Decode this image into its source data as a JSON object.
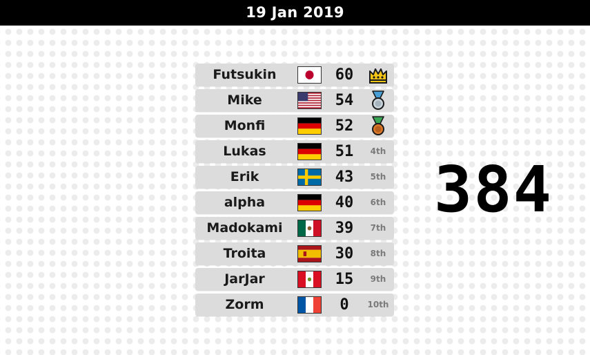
{
  "header": {
    "date": "19 Jan 2019"
  },
  "total_score": "384",
  "colors": {
    "header_bg": "#000000",
    "row_bg": "#dcdcdc",
    "gold": "#f5c518",
    "silver": "#c9d3da",
    "bronze": "#d9772b"
  },
  "leaderboard": [
    {
      "name": "Futsukin",
      "flag": "japan-flag-icon",
      "score": "60",
      "rank": "",
      "medal": "crown-icon"
    },
    {
      "name": "Mike",
      "flag": "usa-flag-icon",
      "score": "54",
      "rank": "",
      "medal": "silver-medal-icon"
    },
    {
      "name": "Monfi",
      "flag": "germany-flag-icon",
      "score": "52",
      "rank": "",
      "medal": "bronze-medal-icon"
    },
    {
      "name": "Lukas",
      "flag": "germany-flag-icon",
      "score": "51",
      "rank": "4th",
      "medal": ""
    },
    {
      "name": "Erik",
      "flag": "sweden-flag-icon",
      "score": "43",
      "rank": "5th",
      "medal": ""
    },
    {
      "name": "alpha",
      "flag": "germany-flag-icon",
      "score": "40",
      "rank": "6th",
      "medal": ""
    },
    {
      "name": "Madokami",
      "flag": "mexico-flag-icon",
      "score": "39",
      "rank": "7th",
      "medal": ""
    },
    {
      "name": "Troita",
      "flag": "spain-flag-icon",
      "score": "30",
      "rank": "8th",
      "medal": ""
    },
    {
      "name": "JarJar",
      "flag": "peru-flag-icon",
      "score": "15",
      "rank": "9th",
      "medal": ""
    },
    {
      "name": "Zorm",
      "flag": "france-flag-icon",
      "score": "0",
      "rank": "10th",
      "medal": ""
    }
  ]
}
